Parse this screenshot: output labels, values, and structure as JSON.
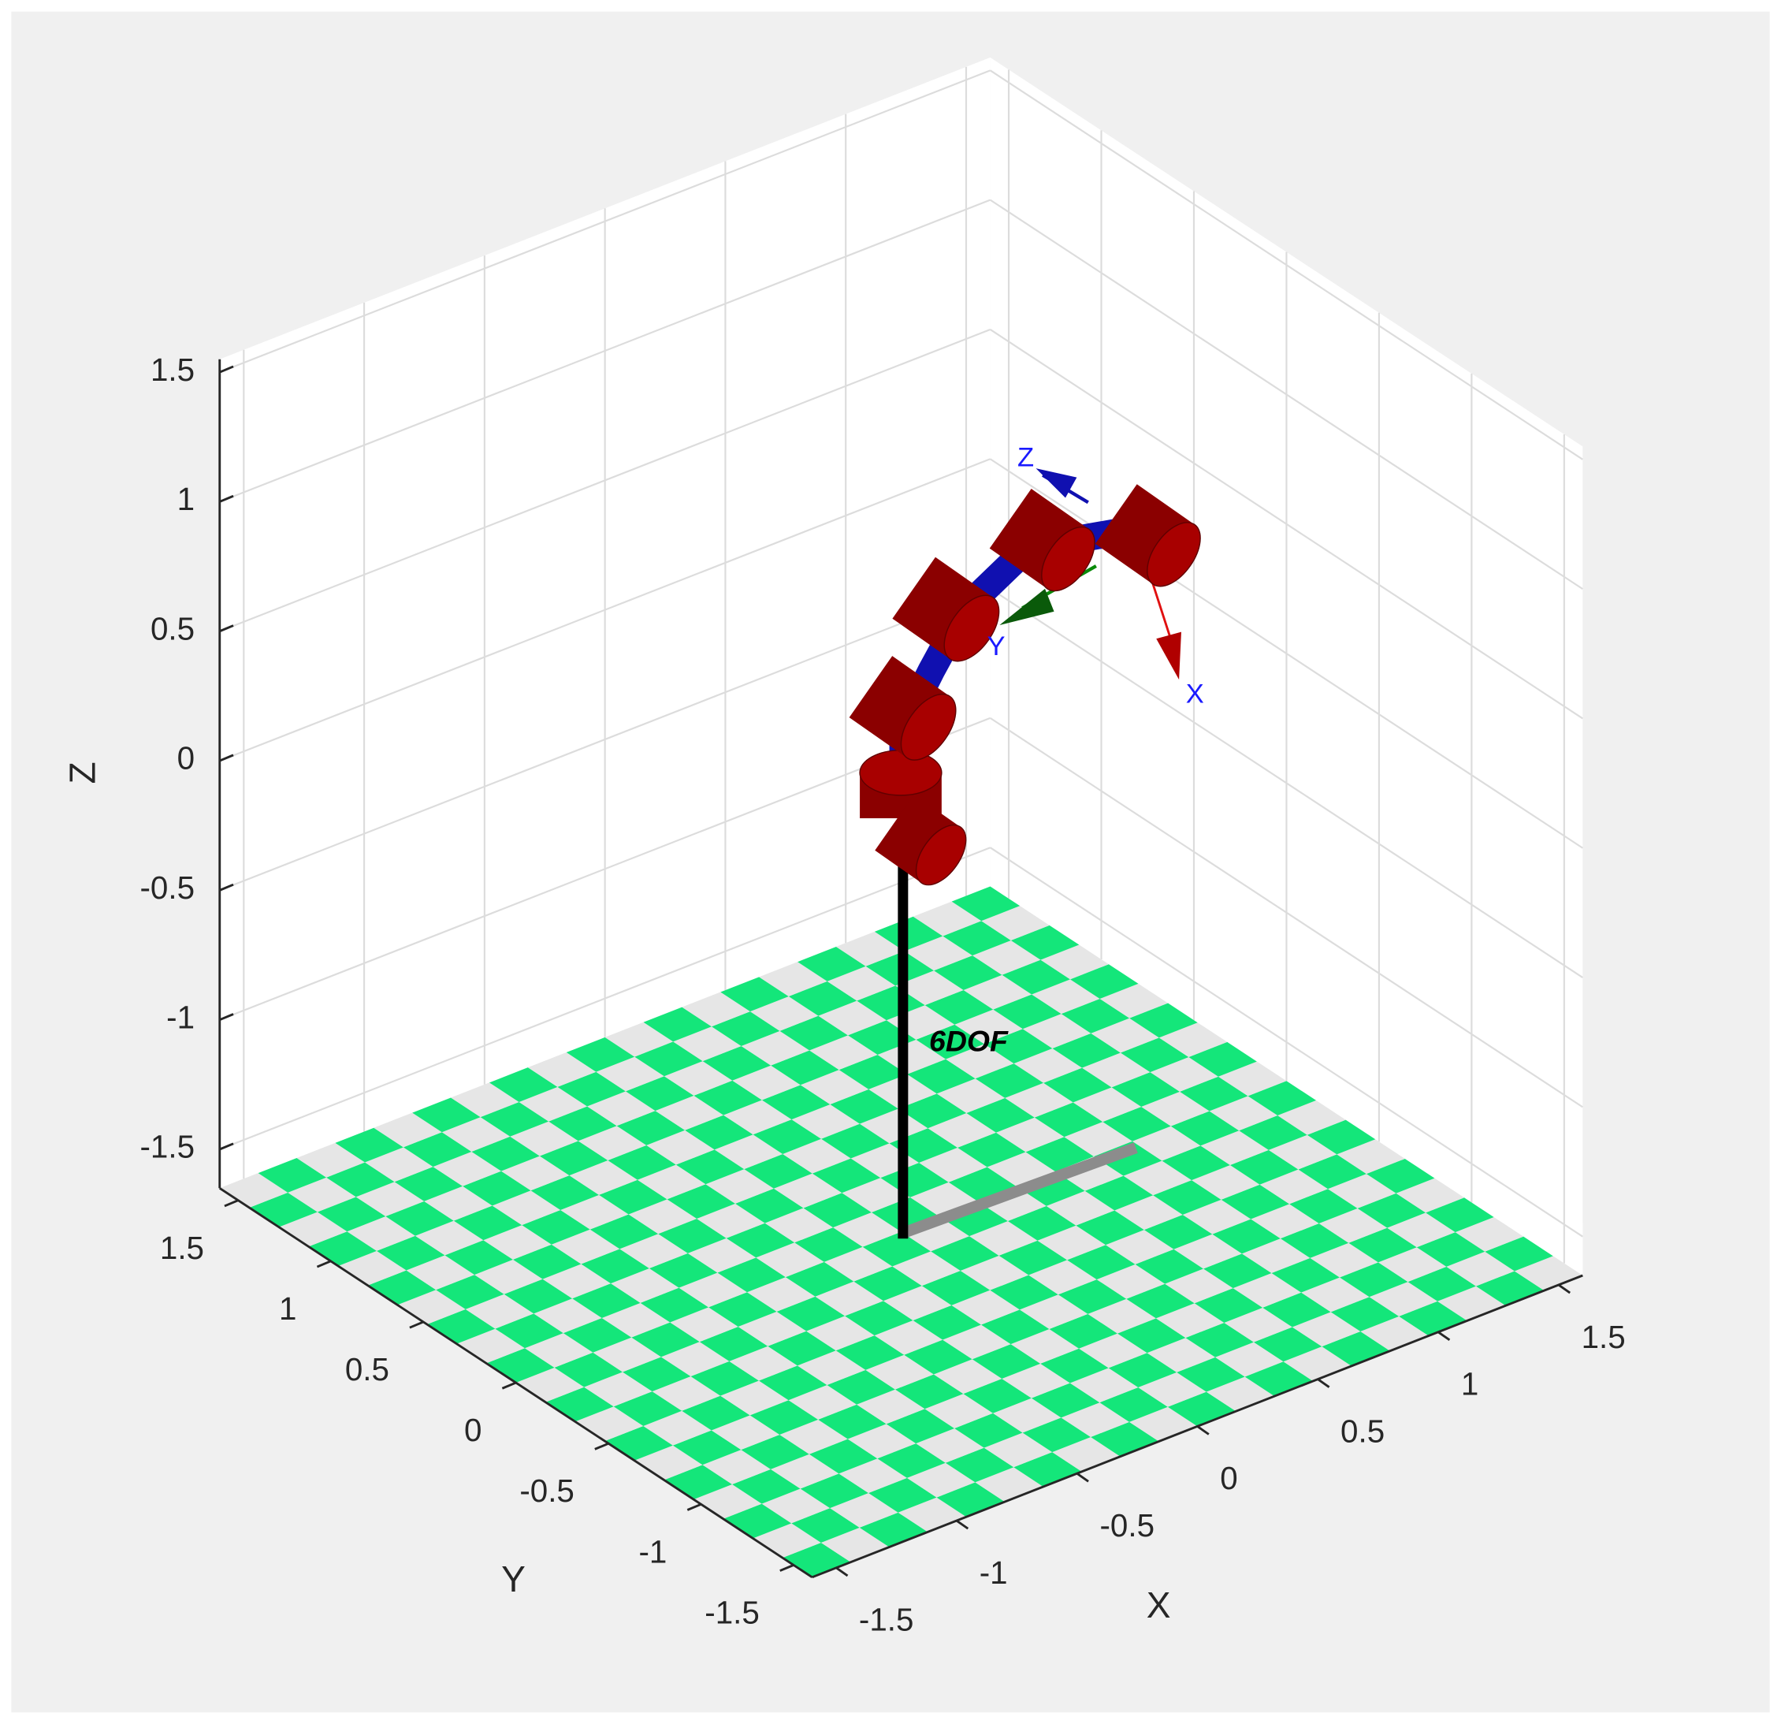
{
  "chart_data": {
    "type": "robot3d",
    "xlabel": "X",
    "ylabel": "Y",
    "zlabel": "Z",
    "xlim": [
      -1.6,
      1.6
    ],
    "ylim": [
      -1.6,
      1.6
    ],
    "zlim": [
      -1.65,
      1.55
    ],
    "xticks": [
      -1.5,
      -1,
      -0.5,
      0,
      0.5,
      1,
      1.5
    ],
    "yticks": [
      -1.5,
      -1,
      -0.5,
      0,
      0.5,
      1,
      1.5
    ],
    "zticks": [
      -1.5,
      -1,
      -0.5,
      0,
      0.5,
      1,
      1.5
    ],
    "grid": true,
    "annotation": "6DOF",
    "frame_labels": {
      "x": "X",
      "y": "Y",
      "z": "Z"
    }
  }
}
